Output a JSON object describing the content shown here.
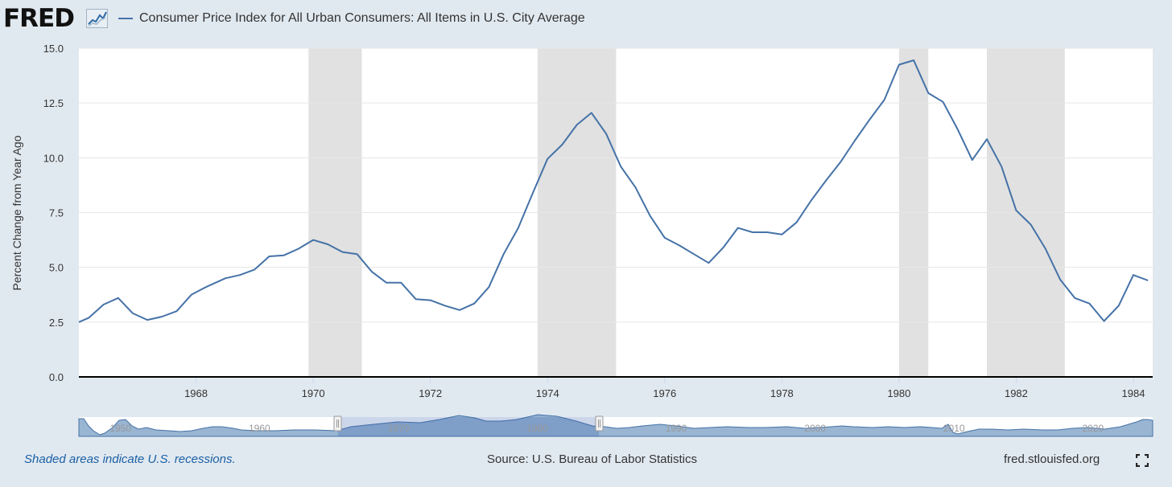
{
  "header": {
    "logo": "FRED",
    "legend_label": "Consumer Price Index for All Urban Consumers: All Items in U.S. City Average",
    "series_color": "#4572a7"
  },
  "footer": {
    "note": "Shaded areas indicate U.S. recessions.",
    "source": "Source: U.S. Bureau of Labor Statistics",
    "link": "fred.stlouisfed.org",
    "fullscreen_icon": "fullscreen-icon"
  },
  "navigator": {
    "tick_labels": [
      "1950",
      "1960",
      "1970",
      "1980",
      "1990",
      "2000",
      "2010",
      "2020"
    ],
    "selected_range": [
      1966,
      1984.3
    ]
  },
  "chart_data": {
    "type": "line",
    "title": "Consumer Price Index for All Urban Consumers: All Items in U.S. City Average",
    "xlabel": "",
    "ylabel": "Percent Change from Year Ago",
    "xlim": [
      1966.0,
      1984.33
    ],
    "ylim": [
      0,
      15
    ],
    "yticks": [
      0.0,
      2.5,
      5.0,
      7.5,
      10.0,
      12.5,
      15.0
    ],
    "ytick_labels": [
      "0.0",
      "2.5",
      "5.0",
      "7.5",
      "10.0",
      "12.5",
      "15.0"
    ],
    "xticks": [
      1968,
      1970,
      1972,
      1974,
      1976,
      1978,
      1980,
      1982,
      1984
    ],
    "xtick_labels": [
      "1968",
      "1970",
      "1972",
      "1974",
      "1976",
      "1978",
      "1980",
      "1982",
      "1984"
    ],
    "recessions": [
      [
        1969.92,
        1970.83
      ],
      [
        1973.83,
        1975.17
      ],
      [
        1980.0,
        1980.5
      ],
      [
        1981.5,
        1982.83
      ]
    ],
    "series": [
      {
        "name": "Consumer Price Index for All Urban Consumers: All Items in U.S. City Average",
        "color": "#4572a7",
        "x": [
          1966.0,
          1966.17,
          1966.42,
          1966.67,
          1966.92,
          1967.17,
          1967.42,
          1967.67,
          1967.92,
          1968.17,
          1968.5,
          1968.75,
          1969.0,
          1969.25,
          1969.5,
          1969.75,
          1970.0,
          1970.25,
          1970.5,
          1970.75,
          1971.0,
          1971.25,
          1971.5,
          1971.75,
          1972.0,
          1972.25,
          1972.5,
          1972.75,
          1973.0,
          1973.25,
          1973.5,
          1973.75,
          1974.0,
          1974.25,
          1974.5,
          1974.75,
          1975.0,
          1975.25,
          1975.5,
          1975.75,
          1976.0,
          1976.25,
          1976.5,
          1976.75,
          1977.0,
          1977.25,
          1977.5,
          1977.75,
          1978.0,
          1978.25,
          1978.5,
          1978.75,
          1979.0,
          1979.25,
          1979.5,
          1979.75,
          1980.0,
          1980.25,
          1980.5,
          1980.75,
          1981.0,
          1981.25,
          1981.5,
          1981.75,
          1982.0,
          1982.25,
          1982.5,
          1982.75,
          1983.0,
          1983.25,
          1983.5,
          1983.75,
          1984.0,
          1984.25
        ],
        "values": [
          2.5,
          2.7,
          3.3,
          3.6,
          2.9,
          2.6,
          2.75,
          3.0,
          3.75,
          4.1,
          4.5,
          4.65,
          4.9,
          5.5,
          5.55,
          5.85,
          6.25,
          6.05,
          5.7,
          5.6,
          4.8,
          4.3,
          4.3,
          3.55,
          3.5,
          3.25,
          3.05,
          3.35,
          4.1,
          5.6,
          6.8,
          8.4,
          9.95,
          10.6,
          11.5,
          12.05,
          11.1,
          9.6,
          8.65,
          7.35,
          6.35,
          6.0,
          5.6,
          5.2,
          5.9,
          6.8,
          6.6,
          6.6,
          6.5,
          7.05,
          8.05,
          8.95,
          9.8,
          10.8,
          11.75,
          12.65,
          14.25,
          14.45,
          12.95,
          12.55,
          11.3,
          9.9,
          10.85,
          9.6,
          7.6,
          6.95,
          5.85,
          4.45,
          3.6,
          3.35,
          2.55,
          3.25,
          4.65,
          4.4
        ]
      }
    ]
  }
}
